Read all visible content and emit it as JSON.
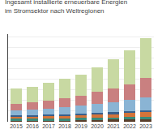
{
  "chart_data": {
    "type": "bar",
    "stacked": true,
    "title": "Ingesamt installierte erneuerbare Energien",
    "subtitle": "im Stromsektor nach Weltregionen",
    "categories": [
      "2015",
      "2016",
      "2017",
      "2018",
      "2019",
      "2020",
      "2021",
      "2022",
      "2023"
    ],
    "series": [
      {
        "color": "#5a3e2b",
        "values": [
          3,
          3,
          3,
          3,
          3,
          3,
          4,
          4,
          4
        ]
      },
      {
        "color": "#3a8a7a",
        "values": [
          3,
          3,
          3,
          3,
          4,
          4,
          4,
          5,
          5
        ]
      },
      {
        "color": "#d4743a",
        "values": [
          4,
          4,
          5,
          6,
          6,
          7,
          7,
          8,
          9
        ]
      },
      {
        "color": "#3a5f8a",
        "values": [
          2,
          2,
          2,
          2,
          2,
          3,
          3,
          3,
          4
        ]
      },
      {
        "color": "#8ab4d4",
        "values": [
          10,
          11,
          12,
          14,
          15,
          17,
          19,
          21,
          24
        ]
      },
      {
        "color": "#c98080",
        "values": [
          12,
          13,
          15,
          17,
          19,
          22,
          26,
          30,
          36
        ]
      },
      {
        "color": "#c8d9a2",
        "values": [
          28,
          30,
          33,
          36,
          40,
          47,
          55,
          63,
          76
        ]
      }
    ],
    "ylim": [
      0,
      165
    ],
    "yticks": [
      0,
      20,
      40,
      60,
      80,
      100,
      120,
      140,
      160
    ],
    "grid": true,
    "tick_labels": "x"
  }
}
